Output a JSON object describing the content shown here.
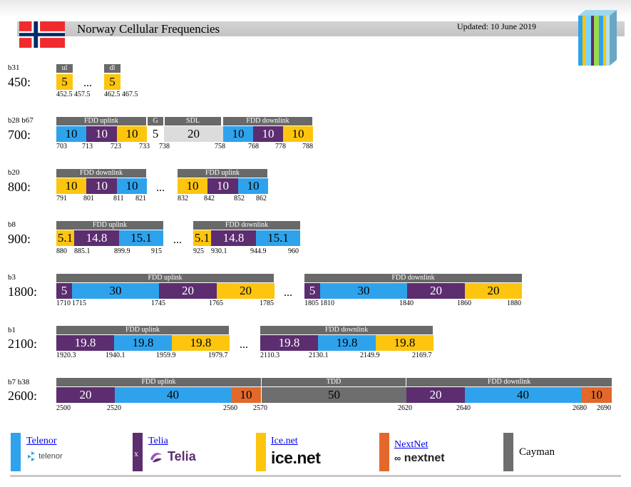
{
  "header": {
    "title": "Norway Cellular Frequencies",
    "updated": "Updated: 10 June 2019"
  },
  "colors": {
    "telenor": "#2ea3ec",
    "telia": "#5c2d6f",
    "ice": "#fec50e",
    "nextnet": "#e2682b",
    "cayman": "#6e6e6e",
    "sdl": "#dcdcdc",
    "header_label": "#696969"
  },
  "bands": {
    "b450": {
      "band": "b31",
      "mhz": "450:",
      "h1": "ul",
      "h2": "dl",
      "blocks": [
        "5",
        "5"
      ],
      "ellipsis": "...",
      "ticks": [
        "452.5",
        "457.5",
        "462.5",
        "467.5"
      ]
    },
    "b700": {
      "band": "b28 b67",
      "mhz": "700:",
      "h_uplink": "FDD uplink",
      "h_g": "G",
      "h_sdl": "SDL",
      "h_downlink": "FDD downlink",
      "blocks": [
        "10",
        "10",
        "10",
        "5",
        "20",
        "10",
        "10",
        "10"
      ],
      "ticks": [
        "703",
        "713",
        "723",
        "733",
        "738",
        "758",
        "768",
        "778",
        "788"
      ]
    },
    "b800": {
      "band": "b20",
      "mhz": "800:",
      "h_downlink": "FDD downlink",
      "h_uplink": "FDD uplink",
      "blocks": [
        "10",
        "10",
        "10",
        "10",
        "10",
        "10"
      ],
      "ellipsis": "...",
      "ticks": [
        "791",
        "801",
        "811",
        "821",
        "832",
        "842",
        "852",
        "862"
      ]
    },
    "b900": {
      "band": "b8",
      "mhz": "900:",
      "h_uplink": "FDD uplink",
      "h_downlink": "FDD downlink",
      "blocks": [
        "5.1",
        "14.8",
        "15.1",
        "5.1",
        "14.8",
        "15.1"
      ],
      "ellipsis": "...",
      "ticks": [
        "880",
        "885.1",
        "899.9",
        "915",
        "925",
        "930.1",
        "944.9",
        "960"
      ]
    },
    "b1800": {
      "band": "b3",
      "mhz": "1800:",
      "h_uplink": "FDD uplink",
      "h_downlink": "FDD downlink",
      "blocks": [
        "5",
        "30",
        "20",
        "20",
        "5",
        "30",
        "20",
        "20"
      ],
      "ellipsis": "...",
      "ticks": [
        "1710",
        "1715",
        "1745",
        "1765",
        "1785",
        "1805",
        "1810",
        "1840",
        "1860",
        "1880"
      ]
    },
    "b2100": {
      "band": "b1",
      "mhz": "2100:",
      "h_uplink": "FDD uplink",
      "h_downlink": "FDD downlink",
      "blocks": [
        "19.8",
        "19.8",
        "19.8",
        "19.8",
        "19.8",
        "19.8"
      ],
      "ellipsis": "...",
      "ticks": [
        "1920.3",
        "1940.1",
        "1959.9",
        "1979.7",
        "2110.3",
        "2130.1",
        "2149.9",
        "2169.7"
      ]
    },
    "b2600": {
      "band": "b7 b38",
      "mhz": "2600:",
      "h_uplink": "FDD uplink",
      "h_tdd": "TDD",
      "h_downlink": "FDD downlink",
      "blocks": [
        "20",
        "40",
        "10",
        "50",
        "20",
        "40",
        "10"
      ],
      "ticks": [
        "2500",
        "2520",
        "2560",
        "2570",
        "2620",
        "2640",
        "2680",
        "2690"
      ]
    }
  },
  "legend": {
    "telenor": {
      "name": "Telenor",
      "logo_text": "telenor"
    },
    "telia": {
      "name": "Telia",
      "mark": "x",
      "logo_text": "Telia"
    },
    "ice": {
      "name": "Ice.net",
      "logo_text": "ice.net"
    },
    "nextnet": {
      "name": "NextNet",
      "logo_text": "nextnet"
    },
    "cayman": {
      "name": "Cayman"
    }
  }
}
